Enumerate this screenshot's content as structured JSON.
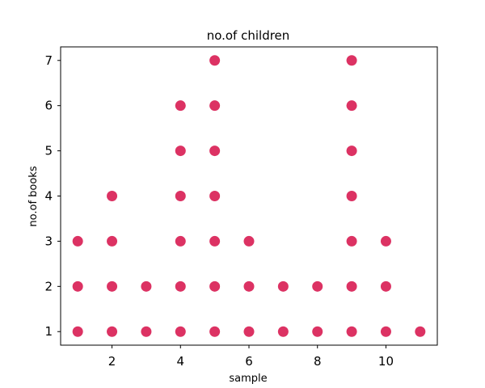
{
  "chart_data": {
    "type": "scatter",
    "title": "no.of children",
    "xlabel": "sample",
    "ylabel": "no.of books",
    "xlim": [
      0.5,
      11.5
    ],
    "ylim": [
      0.7,
      7.3
    ],
    "xticks": [
      2,
      4,
      6,
      8,
      10
    ],
    "yticks": [
      1,
      2,
      3,
      4,
      5,
      6,
      7
    ],
    "grid": false,
    "marker_color": "#dc3263",
    "x": [
      1,
      1,
      1,
      2,
      2,
      2,
      2,
      3,
      3,
      4,
      4,
      4,
      4,
      4,
      4,
      5,
      5,
      5,
      5,
      5,
      5,
      5,
      6,
      6,
      6,
      7,
      7,
      8,
      8,
      9,
      9,
      9,
      9,
      9,
      9,
      9,
      10,
      10,
      10,
      11
    ],
    "y": [
      1,
      2,
      3,
      1,
      2,
      3,
      4,
      1,
      2,
      1,
      2,
      3,
      4,
      5,
      6,
      1,
      2,
      3,
      4,
      5,
      6,
      7,
      1,
      2,
      3,
      1,
      2,
      1,
      2,
      1,
      2,
      3,
      4,
      5,
      6,
      7,
      1,
      2,
      3,
      1
    ]
  }
}
